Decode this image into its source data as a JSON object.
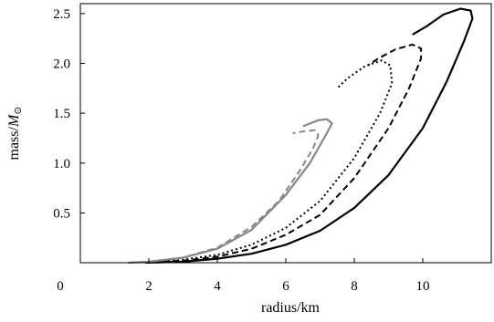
{
  "chart_data": {
    "type": "line",
    "title": "",
    "xlabel": "radius/km",
    "ylabel_main": "mass/",
    "ylabel_symbol": "M",
    "ylabel_subscript": "⊙",
    "xlim": [
      0,
      12
    ],
    "ylim": [
      0,
      2.6
    ],
    "grid": false,
    "legend": "none",
    "x_ticks": [
      0,
      2,
      4,
      6,
      8,
      10
    ],
    "x_tick_labels": [
      "0",
      "2",
      "4",
      "6",
      "8",
      "10"
    ],
    "y_ticks": [
      0.5,
      1.0,
      1.5,
      2.0,
      2.5
    ],
    "y_tick_labels": [
      "0.5",
      "1.0",
      "1.5",
      "2.0",
      "2.5"
    ],
    "series": [
      {
        "style": "solid",
        "color": "#000000",
        "points": [
          [
            1.9,
            0.0
          ],
          [
            3.0,
            0.01
          ],
          [
            4.0,
            0.04
          ],
          [
            5.0,
            0.09
          ],
          [
            6.0,
            0.18
          ],
          [
            7.0,
            0.32
          ],
          [
            8.0,
            0.55
          ],
          [
            9.0,
            0.88
          ],
          [
            10.0,
            1.35
          ],
          [
            10.7,
            1.82
          ],
          [
            11.2,
            2.22
          ],
          [
            11.45,
            2.45
          ],
          [
            11.4,
            2.53
          ],
          [
            11.1,
            2.55
          ],
          [
            10.6,
            2.49
          ],
          [
            10.1,
            2.37
          ],
          [
            9.7,
            2.29
          ]
        ]
      },
      {
        "style": "dashed",
        "color": "#000000",
        "points": [
          [
            2.1,
            0.01
          ],
          [
            3.0,
            0.02
          ],
          [
            4.0,
            0.06
          ],
          [
            5.0,
            0.14
          ],
          [
            6.0,
            0.28
          ],
          [
            7.0,
            0.48
          ],
          [
            8.0,
            0.85
          ],
          [
            9.0,
            1.35
          ],
          [
            9.6,
            1.75
          ],
          [
            9.95,
            2.05
          ],
          [
            9.95,
            2.15
          ],
          [
            9.7,
            2.19
          ],
          [
            9.2,
            2.14
          ],
          [
            8.7,
            2.05
          ],
          [
            8.4,
            1.98
          ]
        ]
      },
      {
        "style": "dotted",
        "color": "#000000",
        "points": [
          [
            2.3,
            0.01
          ],
          [
            3.0,
            0.03
          ],
          [
            4.0,
            0.08
          ],
          [
            5.0,
            0.18
          ],
          [
            6.0,
            0.35
          ],
          [
            7.0,
            0.62
          ],
          [
            8.0,
            1.05
          ],
          [
            8.75,
            1.5
          ],
          [
            9.1,
            1.8
          ],
          [
            9.05,
            1.98
          ],
          [
            8.8,
            2.03
          ],
          [
            8.3,
            1.97
          ],
          [
            7.8,
            1.85
          ],
          [
            7.5,
            1.75
          ]
        ]
      },
      {
        "style": "solid",
        "color": "#888888",
        "points": [
          [
            1.4,
            0.0
          ],
          [
            2.0,
            0.01
          ],
          [
            3.0,
            0.05
          ],
          [
            4.0,
            0.14
          ],
          [
            5.0,
            0.33
          ],
          [
            6.0,
            0.68
          ],
          [
            6.7,
            1.0
          ],
          [
            7.2,
            1.3
          ],
          [
            7.35,
            1.4
          ],
          [
            7.2,
            1.44
          ],
          [
            6.95,
            1.43
          ],
          [
            6.5,
            1.37
          ]
        ]
      },
      {
        "style": "dashed",
        "color": "#888888",
        "points": [
          [
            1.4,
            0.0
          ],
          [
            2.0,
            0.01
          ],
          [
            3.0,
            0.05
          ],
          [
            4.0,
            0.15
          ],
          [
            5.0,
            0.36
          ],
          [
            5.8,
            0.62
          ],
          [
            6.4,
            0.92
          ],
          [
            6.8,
            1.15
          ],
          [
            6.95,
            1.28
          ],
          [
            6.85,
            1.33
          ],
          [
            6.55,
            1.32
          ],
          [
            6.2,
            1.3
          ]
        ]
      }
    ]
  }
}
